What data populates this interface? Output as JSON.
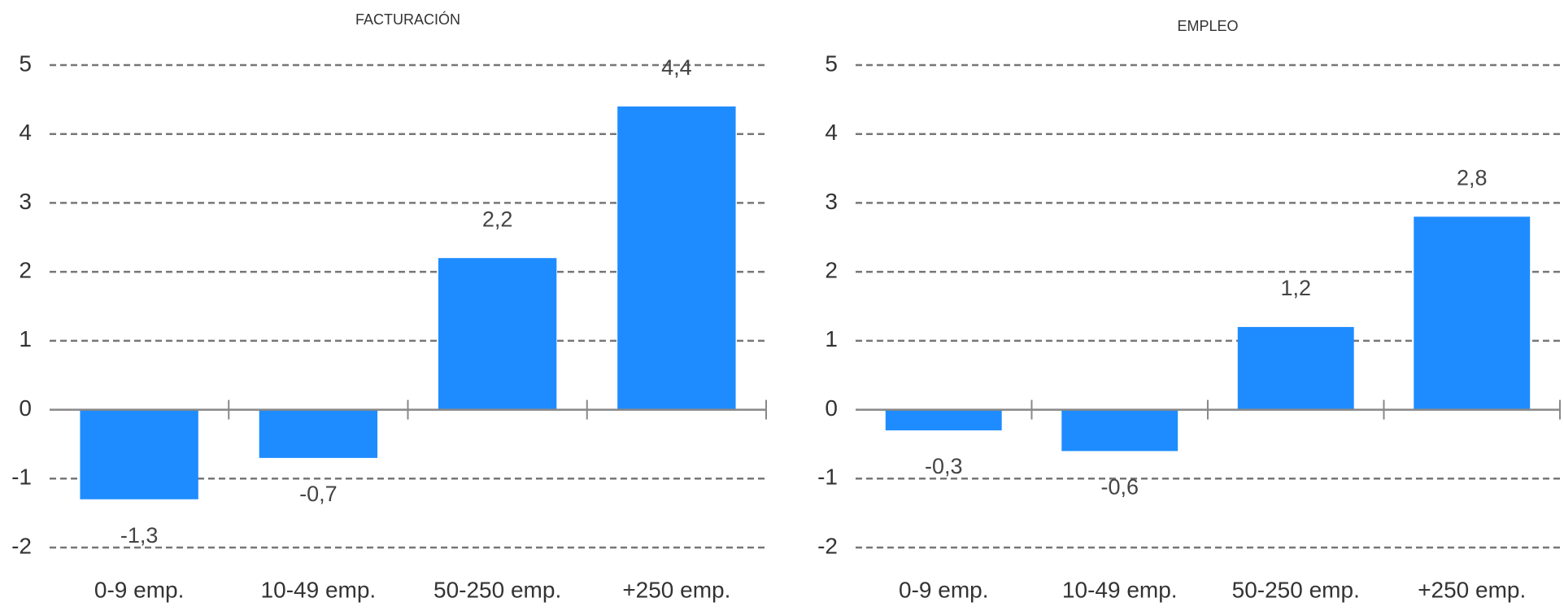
{
  "chart_data": [
    {
      "type": "bar",
      "title": "FACTURACIÓN",
      "categories": [
        "0-9 emp.",
        "10-49 emp.",
        "50-250 emp.",
        "+250 emp."
      ],
      "values": [
        -1.3,
        -0.7,
        2.2,
        4.4
      ],
      "value_labels": [
        "-1,3",
        "-0,7",
        "2,2",
        "4,4"
      ],
      "color": "#1e8cff",
      "ylim": [
        -2,
        5
      ],
      "yticks": [
        -2,
        -1,
        0,
        1,
        2,
        3,
        4,
        5
      ],
      "grid": true
    },
    {
      "type": "bar",
      "title": "EMPLEO",
      "categories": [
        "0-9 emp.",
        "10-49 emp.",
        "50-250 emp.",
        "+250 emp."
      ],
      "values": [
        -0.3,
        -0.6,
        1.2,
        2.8
      ],
      "value_labels": [
        "-0,3",
        "-0,6",
        "1,2",
        "2,8"
      ],
      "color": "#1e8cff",
      "ylim": [
        -2,
        5
      ],
      "yticks": [
        -2,
        -1,
        0,
        1,
        2,
        3,
        4,
        5
      ],
      "grid": true
    }
  ]
}
